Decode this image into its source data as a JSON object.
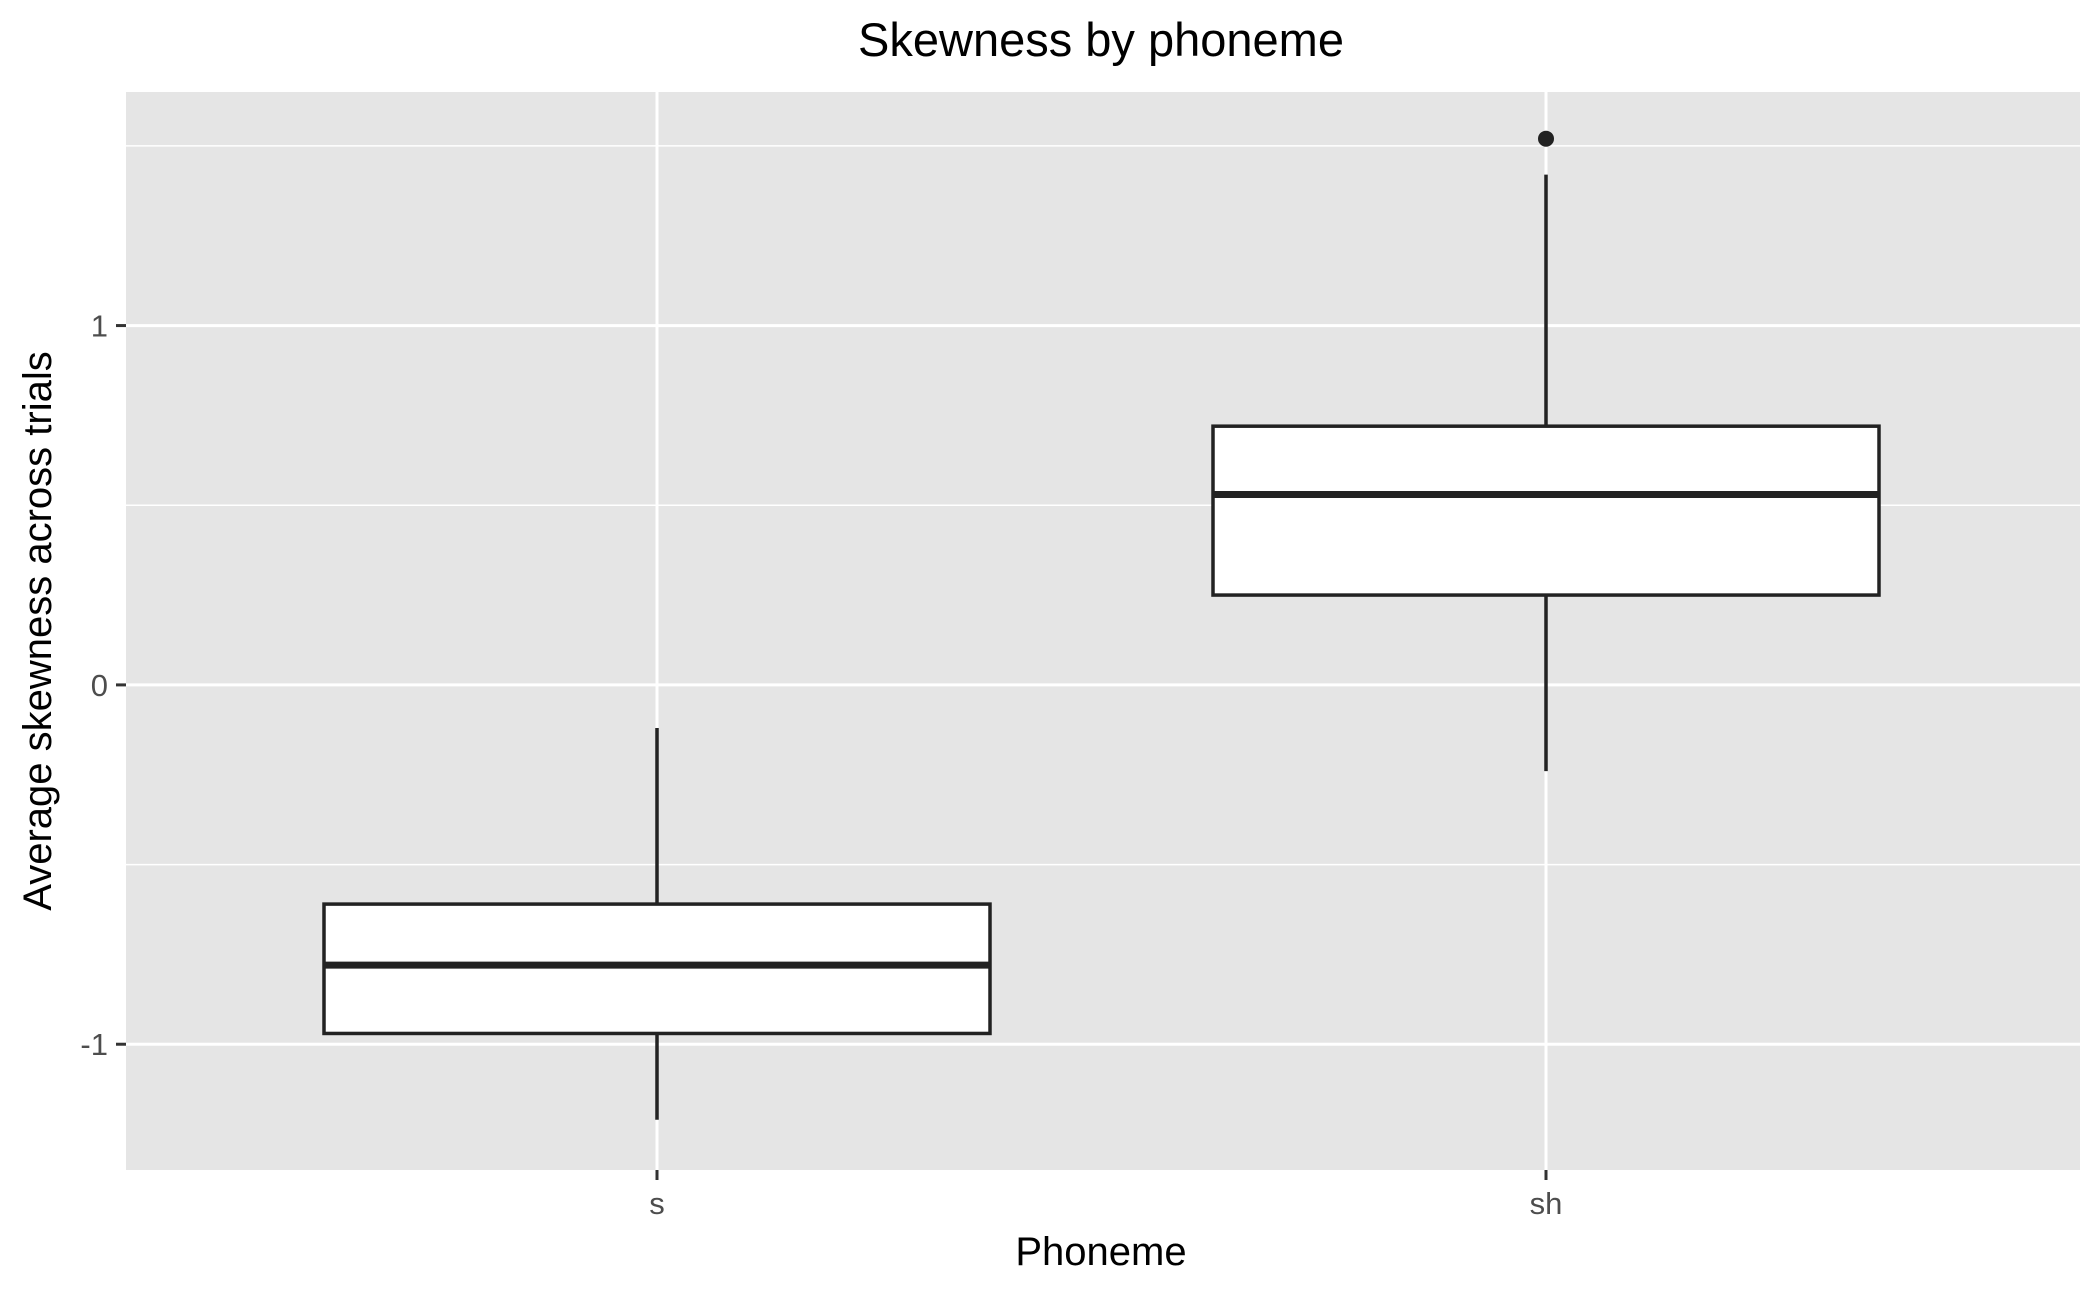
{
  "chart_data": {
    "type": "boxplot",
    "title": "Skewness by phoneme",
    "xlabel": "Phoneme",
    "ylabel": "Average skewness across trials",
    "categories": [
      "s",
      "sh"
    ],
    "boxes": [
      {
        "category": "s",
        "whisker_low": -1.21,
        "q1": -0.97,
        "median": -0.78,
        "q3": -0.61,
        "whisker_high": -0.12,
        "outliers": []
      },
      {
        "category": "sh",
        "whisker_low": -0.24,
        "q1": 0.25,
        "median": 0.53,
        "q3": 0.72,
        "whisker_high": 1.42,
        "outliers": [
          1.52
        ]
      }
    ],
    "ylim": [
      -1.35,
      1.65
    ],
    "yticks": [
      -1,
      0,
      1
    ],
    "ytick_labels": [
      "-1",
      "0",
      "1"
    ],
    "y_minor_ticks": [
      -0.5,
      0.5,
      1.5
    ],
    "grid": true,
    "background": "#e5e5e5",
    "grid_color": "#ffffff",
    "box_fill": "#ffffff",
    "line_color": "#222222"
  }
}
